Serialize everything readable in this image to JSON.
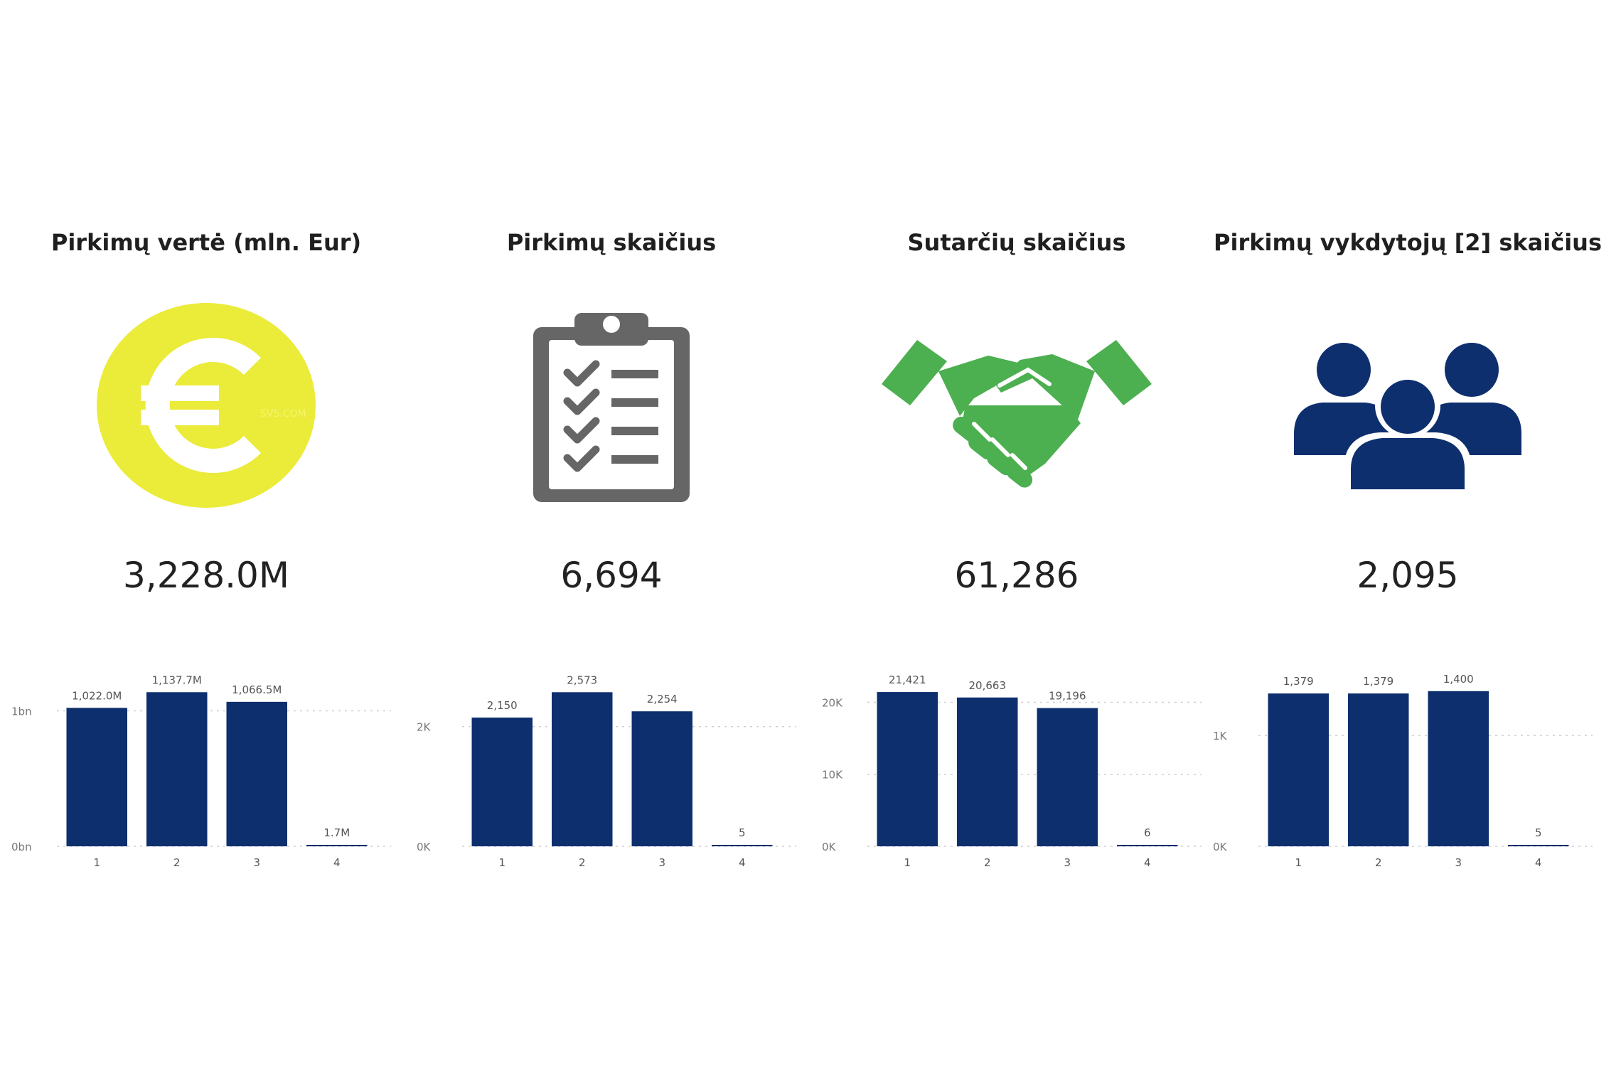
{
  "kpis": [
    {
      "title": "Pirkimų vertė (mln. Eur)",
      "value": "3,228.0M",
      "icon": "euro-coin-icon",
      "icon_color": "#ebeb3a",
      "icon_text": "SVS.COM"
    },
    {
      "title": "Pirkimų skaičius",
      "value": "6,694",
      "icon": "clipboard-checklist-icon",
      "icon_color": "#666666"
    },
    {
      "title": "Sutarčių skaičius",
      "value": "61,286",
      "icon": "handshake-icon",
      "icon_color": "#4caf50"
    },
    {
      "title": "Pirkimų vykdytojų [2] skaičius",
      "value": "2,095",
      "icon": "people-group-icon",
      "icon_color": "#0e2f6e"
    }
  ],
  "chart_data": [
    {
      "type": "bar",
      "categories": [
        "1",
        "2",
        "3",
        "4"
      ],
      "values": [
        1022.0,
        1137.7,
        1066.5,
        1.7
      ],
      "data_labels": [
        "1,022.0M",
        "1,137.7M",
        "1,066.5M",
        "1.7M"
      ],
      "yticks": [
        {
          "v": 0,
          "label": "0bn"
        },
        {
          "v": 1000,
          "label": "1bn"
        }
      ],
      "ylim": [
        0,
        1260
      ],
      "bar_color": "#0e2f6e",
      "grid": true
    },
    {
      "type": "bar",
      "categories": [
        "1",
        "2",
        "3",
        "4"
      ],
      "values": [
        2150,
        2573,
        2254,
        5
      ],
      "data_labels": [
        "2,150",
        "2,573",
        "2,254",
        "5"
      ],
      "yticks": [
        {
          "v": 0,
          "label": "0K"
        },
        {
          "v": 2000,
          "label": "2K"
        }
      ],
      "ylim": [
        0,
        2850
      ],
      "bar_color": "#0e2f6e",
      "grid": true
    },
    {
      "type": "bar",
      "categories": [
        "1",
        "2",
        "3",
        "4"
      ],
      "values": [
        21421,
        20663,
        19196,
        6
      ],
      "data_labels": [
        "21,421",
        "20,663",
        "19,196",
        "6"
      ],
      "yticks": [
        {
          "v": 0,
          "label": "0K"
        },
        {
          "v": 10000,
          "label": "10K"
        },
        {
          "v": 20000,
          "label": "20K"
        }
      ],
      "ylim": [
        0,
        23700
      ],
      "bar_color": "#0e2f6e",
      "grid": true
    },
    {
      "type": "bar",
      "categories": [
        "1",
        "2",
        "3",
        "4"
      ],
      "values": [
        1379,
        1379,
        1400,
        5
      ],
      "data_labels": [
        "1,379",
        "1,379",
        "1,400",
        "5"
      ],
      "yticks": [
        {
          "v": 0,
          "label": "0K"
        },
        {
          "v": 1000,
          "label": "1K"
        }
      ],
      "ylim": [
        0,
        1540
      ],
      "bar_color": "#0e2f6e",
      "grid": true
    }
  ]
}
